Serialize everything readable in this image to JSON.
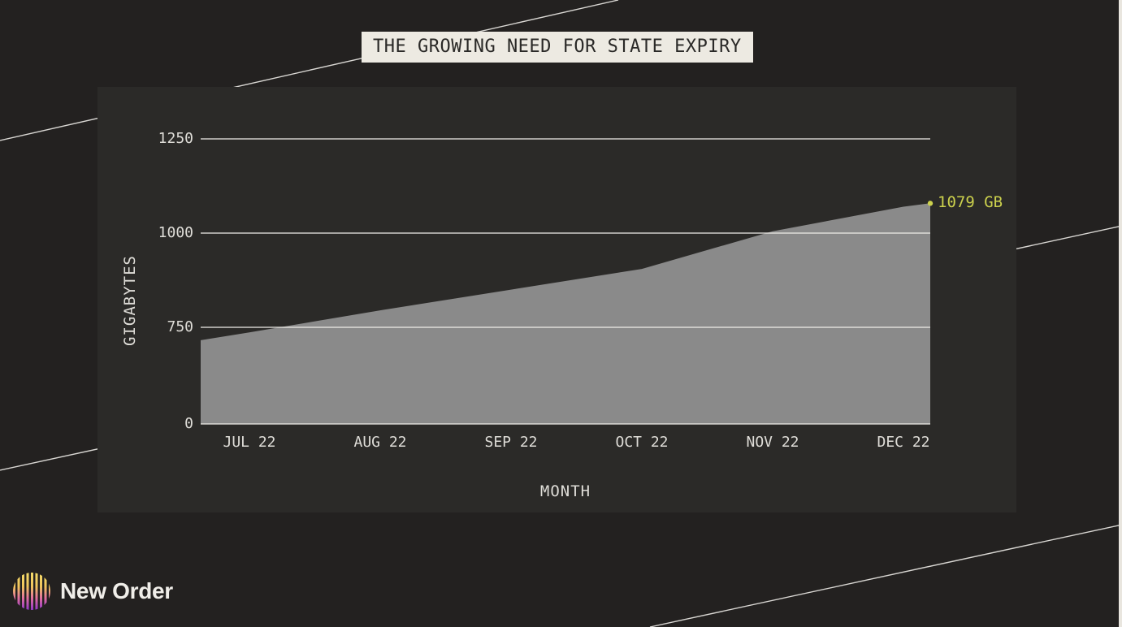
{
  "title": "THE GROWING NEED FOR STATE EXPIRY",
  "brand": {
    "name": "New Order"
  },
  "chart_data": {
    "type": "area",
    "title": "THE GROWING NEED FOR STATE EXPIRY",
    "xlabel": "MONTH",
    "ylabel": "GIGABYTES",
    "categories": [
      "JUL 22",
      "AUG 22",
      "SEP 22",
      "OCT 22",
      "NOV 22",
      "DEC 22"
    ],
    "values": [
      710,
      795,
      850,
      905,
      1005,
      1070
    ],
    "start_value": 650,
    "end_point": {
      "value": 1079,
      "label": "1079 GB"
    },
    "y_ticks": [
      0,
      750,
      1000,
      1250
    ],
    "ylim": [
      0,
      1350
    ],
    "y_axis_compressed_below": 750,
    "grid": true,
    "legend": false
  },
  "colors": {
    "background": "#232120",
    "panel": "#2b2a28",
    "area_fill": "#8a8a8a",
    "gridline": "#eceae6",
    "tick_text": "#dfddd8",
    "accent_label": "#ccd14d",
    "title_bg": "#edeae2",
    "title_text": "#2a2927",
    "diagonal_line": "#d9d7d3"
  }
}
